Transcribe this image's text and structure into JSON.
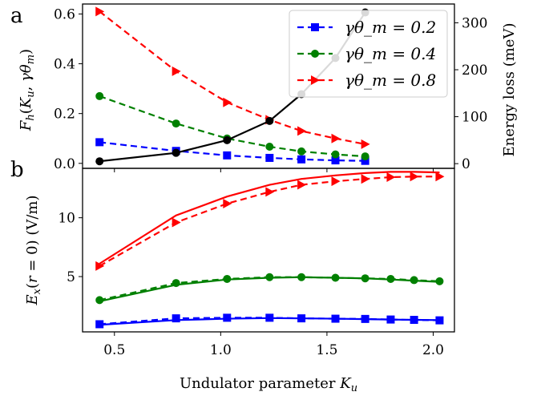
{
  "chart_data": [
    {
      "panel": "a",
      "type": "line",
      "x": [
        0.43,
        0.79,
        1.03,
        1.23,
        1.38,
        1.54,
        1.68
      ],
      "xlabel": "",
      "ylabel_left": "F_h(K_u, γθ_m)",
      "ylabel_right": "Energy loss (meV)",
      "ylim": [
        -0.02,
        0.64
      ],
      "yticks": [
        "0.0",
        "0.2",
        "0.4",
        "0.6"
      ],
      "ylim_right": [
        -10,
        340
      ],
      "yticks_right": [
        "0",
        "100",
        "200",
        "300"
      ],
      "series": [
        {
          "name": "γθ_m = 0.2",
          "axis": "left",
          "color": "#0000ff",
          "style": "dashed",
          "marker": "square",
          "values": [
            0.085,
            0.05,
            0.032,
            0.022,
            0.016,
            0.012,
            0.01
          ]
        },
        {
          "name": "γθ_m = 0.4",
          "axis": "left",
          "color": "#008000",
          "style": "dashed",
          "marker": "circle",
          "values": [
            0.27,
            0.16,
            0.1,
            0.067,
            0.048,
            0.036,
            0.028
          ]
        },
        {
          "name": "γθ_m = 0.8",
          "axis": "left",
          "color": "#ff0000",
          "style": "dashed",
          "marker": "triangle-right",
          "values": [
            0.61,
            0.37,
            0.245,
            0.175,
            0.13,
            0.1,
            0.077
          ]
        },
        {
          "name": "",
          "axis": "right",
          "color": "#000000",
          "style": "solid",
          "marker": "circle",
          "values": [
            5,
            23,
            50,
            91,
            148,
            225,
            322
          ]
        }
      ],
      "legend_position": "top-right"
    },
    {
      "panel": "b",
      "type": "line",
      "xlabel": "Undulator parameter K_u",
      "ylabel": "E_x(r = 0) (V/m)",
      "xlim": [
        0.35,
        2.1
      ],
      "xticks": [
        "0.5",
        "1.0",
        "1.5",
        "2.0"
      ],
      "ylim": [
        0.3,
        14.2
      ],
      "yticks": [
        "5",
        "10"
      ],
      "series": [
        {
          "name": "",
          "color": "#ff0000",
          "style": "solid",
          "x": [
            0.43,
            0.79,
            1.03,
            1.23,
            1.38,
            1.54,
            1.68,
            1.8,
            1.91,
            2.03
          ],
          "values": [
            6.1,
            10.2,
            11.8,
            12.8,
            13.3,
            13.6,
            13.8,
            13.9,
            13.9,
            13.85
          ]
        },
        {
          "name": "",
          "color": "#ff0000",
          "style": "dashed",
          "marker": "triangle-right",
          "x": [
            0.43,
            0.79,
            1.03,
            1.23,
            1.38,
            1.54,
            1.68,
            1.8,
            1.91,
            2.03
          ],
          "values": [
            5.9,
            9.6,
            11.2,
            12.2,
            12.8,
            13.1,
            13.3,
            13.45,
            13.5,
            13.5
          ]
        },
        {
          "name": "",
          "color": "#008000",
          "style": "solid",
          "x": [
            0.43,
            0.79,
            1.03,
            1.23,
            1.38,
            1.54,
            1.68,
            1.8,
            1.91,
            2.03
          ],
          "values": [
            2.9,
            4.3,
            4.75,
            4.9,
            4.95,
            4.9,
            4.85,
            4.75,
            4.65,
            4.55
          ]
        },
        {
          "name": "",
          "color": "#008000",
          "style": "dashed",
          "marker": "circle",
          "x": [
            0.43,
            0.79,
            1.03,
            1.23,
            1.38,
            1.54,
            1.68,
            1.8,
            1.91,
            2.03
          ],
          "values": [
            3.0,
            4.45,
            4.8,
            4.95,
            4.95,
            4.9,
            4.85,
            4.8,
            4.7,
            4.6
          ]
        },
        {
          "name": "",
          "color": "#0000ff",
          "style": "solid",
          "x": [
            0.43,
            0.79,
            1.03,
            1.23,
            1.38,
            1.54,
            1.68,
            1.8,
            1.91,
            2.03
          ],
          "values": [
            0.9,
            1.3,
            1.42,
            1.47,
            1.45,
            1.42,
            1.38,
            1.35,
            1.32,
            1.3
          ]
        },
        {
          "name": "",
          "color": "#0000ff",
          "style": "dashed",
          "marker": "square",
          "x": [
            0.43,
            0.79,
            1.03,
            1.23,
            1.38,
            1.54,
            1.68,
            1.8,
            1.91,
            2.03
          ],
          "values": [
            0.95,
            1.45,
            1.5,
            1.5,
            1.45,
            1.42,
            1.4,
            1.35,
            1.32,
            1.28
          ]
        }
      ]
    }
  ]
}
